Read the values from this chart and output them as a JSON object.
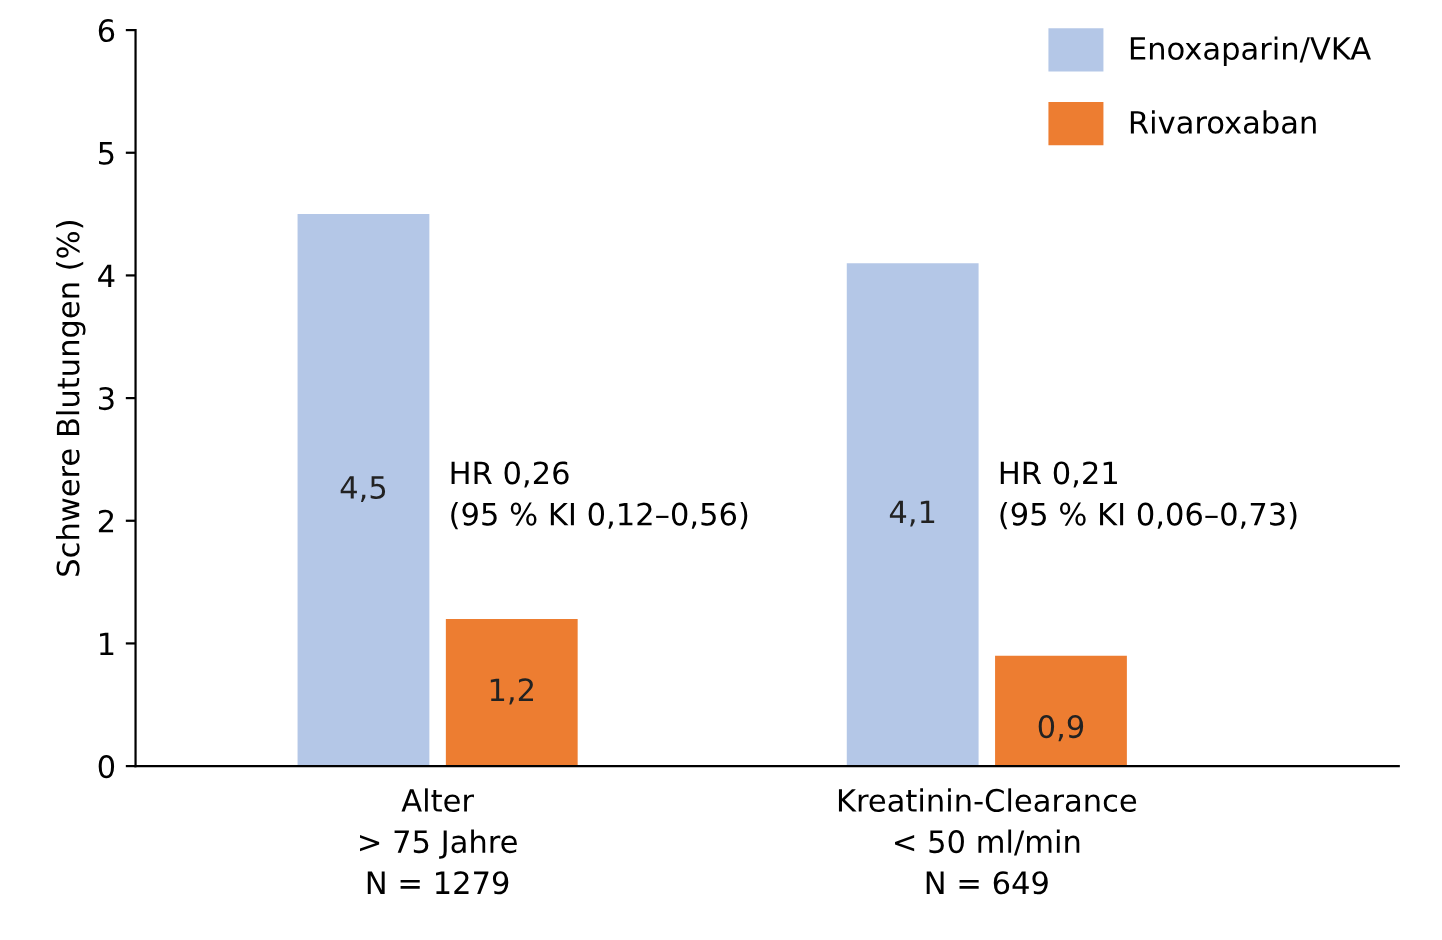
{
  "chart_data": {
    "type": "bar",
    "ylabel": "Schwere Blutungen (%)",
    "categories": [
      "Alter\n> 75 Jahre\nN = 1279",
      "Kreatinin-Clearance\n< 50 ml/min\nN = 649"
    ],
    "series": [
      {
        "name": "Enoxaparin/VKA",
        "color": "#b4c7e7",
        "values": [
          4.5,
          4.1
        ],
        "value_labels": [
          "4,5",
          "4,1"
        ]
      },
      {
        "name": "Rivaroxaban",
        "color": "#ed7d31",
        "values": [
          1.2,
          0.9
        ],
        "value_labels": [
          "1,2",
          "0,9"
        ]
      }
    ],
    "ylim": [
      0,
      6
    ],
    "yticks": [
      0,
      1,
      2,
      3,
      4,
      5,
      6
    ],
    "grid": false,
    "legend": "top right",
    "annotations": [
      "HR 0,26\n(95 % KI 0,12–0,56)",
      "HR 0,21\n(95 % KI 0,06–0,73)"
    ]
  }
}
